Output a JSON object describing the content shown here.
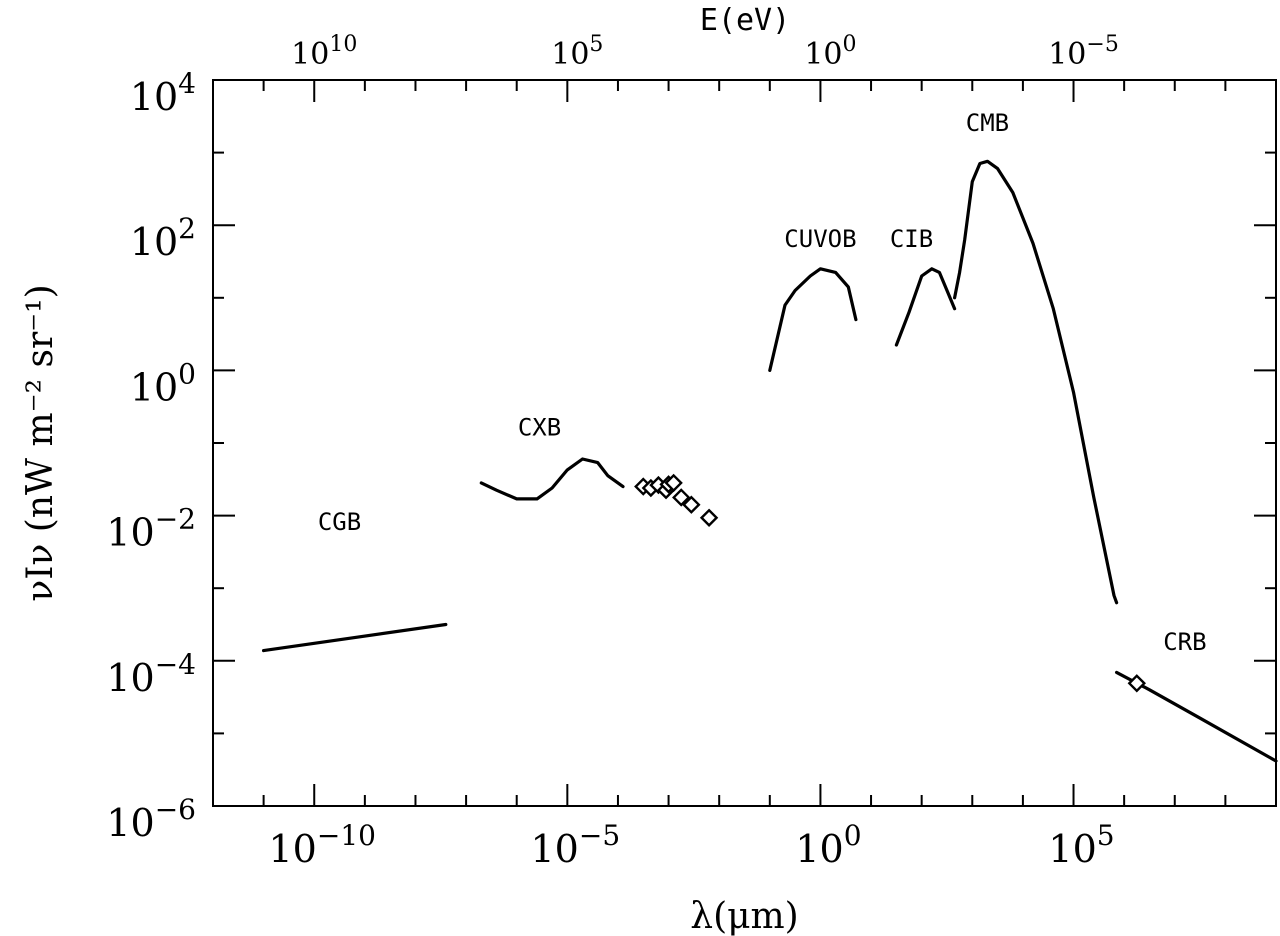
{
  "chart_data": {
    "type": "line",
    "title": "",
    "xlabel": "λ(μm)",
    "ylabel": "νIν (nW m⁻² sr⁻¹)",
    "top_xlabel": "E(eV)",
    "xscale": "log",
    "yscale": "log",
    "xlim_log10": [
      -12,
      9
    ],
    "ylim_log10": [
      -6,
      4
    ],
    "x_ticks": [
      {
        "base": "10",
        "exp": "−10",
        "log10": -10
      },
      {
        "base": "10",
        "exp": "−5",
        "log10": -5
      },
      {
        "base": "10",
        "exp": "0",
        "log10": 0
      },
      {
        "base": "10",
        "exp": "5",
        "log10": 5
      }
    ],
    "y_ticks": [
      {
        "base": "10",
        "exp": "4",
        "log10": 4
      },
      {
        "base": "10",
        "exp": "2",
        "log10": 2
      },
      {
        "base": "10",
        "exp": "0",
        "log10": 0
      },
      {
        "base": "10",
        "exp": "−2",
        "log10": -2
      },
      {
        "base": "10",
        "exp": "−4",
        "log10": -4
      },
      {
        "base": "10",
        "exp": "−6",
        "log10": -6
      }
    ],
    "top_x_ticks": [
      {
        "base": "10",
        "exp": "10",
        "log10_lambda": -10
      },
      {
        "base": "10",
        "exp": "5",
        "log10_lambda": -5
      },
      {
        "base": "10",
        "exp": "0",
        "log10_lambda": 0
      },
      {
        "base": "10",
        "exp": "−5",
        "log10_lambda": 5
      }
    ],
    "series": [
      {
        "name": "CGB",
        "points_log10": [
          [
            -11,
            -3.86
          ],
          [
            -7.4,
            -3.5
          ]
        ]
      },
      {
        "name": "CXB",
        "points_log10": [
          [
            -6.7,
            -1.55
          ],
          [
            -6.4,
            -1.65
          ],
          [
            -6.0,
            -1.77
          ],
          [
            -5.6,
            -1.77
          ],
          [
            -5.3,
            -1.62
          ],
          [
            -5.0,
            -1.37
          ],
          [
            -4.7,
            -1.22
          ],
          [
            -4.4,
            -1.27
          ],
          [
            -4.2,
            -1.45
          ],
          [
            -3.9,
            -1.6
          ]
        ]
      },
      {
        "name": "CUVOB",
        "points_log10": [
          [
            -1.0,
            0.0
          ],
          [
            -0.7,
            0.9
          ],
          [
            -0.5,
            1.1
          ],
          [
            -0.2,
            1.3
          ],
          [
            0.0,
            1.4
          ],
          [
            0.3,
            1.35
          ],
          [
            0.55,
            1.15
          ],
          [
            0.7,
            0.7
          ]
        ]
      },
      {
        "name": "CIB",
        "points_log10": [
          [
            1.5,
            0.35
          ],
          [
            1.75,
            0.8
          ],
          [
            2.0,
            1.3
          ],
          [
            2.2,
            1.4
          ],
          [
            2.35,
            1.35
          ],
          [
            2.5,
            1.1
          ],
          [
            2.65,
            0.85
          ]
        ]
      },
      {
        "name": "CMB",
        "points_log10": [
          [
            2.65,
            1.0
          ],
          [
            2.75,
            1.35
          ],
          [
            2.85,
            1.8
          ],
          [
            3.0,
            2.6
          ],
          [
            3.15,
            2.85
          ],
          [
            3.3,
            2.88
          ],
          [
            3.5,
            2.78
          ],
          [
            3.8,
            2.45
          ],
          [
            4.2,
            1.75
          ],
          [
            4.6,
            0.85
          ],
          [
            5.0,
            -0.3
          ],
          [
            5.4,
            -1.75
          ],
          [
            5.8,
            -3.1
          ],
          [
            5.85,
            -3.2
          ]
        ]
      },
      {
        "name": "CRB",
        "points_log10": [
          [
            5.85,
            -4.16
          ],
          [
            6.5,
            -4.4
          ],
          [
            7.5,
            -4.79
          ],
          [
            9.0,
            -5.38
          ]
        ]
      }
    ],
    "markers": [
      {
        "series": "CXB",
        "points_log10": [
          [
            -3.5,
            -1.6
          ],
          [
            -3.35,
            -1.62
          ],
          [
            -3.2,
            -1.58
          ],
          [
            -3.05,
            -1.65
          ],
          [
            -3.0,
            -1.57
          ],
          [
            -2.9,
            -1.55
          ],
          [
            -2.75,
            -1.75
          ],
          [
            -2.55,
            -1.85
          ],
          [
            -2.2,
            -2.03
          ]
        ]
      },
      {
        "series": "CRB",
        "points_log10": [
          [
            6.25,
            -4.31
          ]
        ]
      }
    ],
    "annotations": [
      {
        "text": "CGB",
        "at_log10": [
          -9.5,
          -2.2
        ]
      },
      {
        "text": "CXB",
        "at_log10": [
          -5.55,
          -0.9
        ]
      },
      {
        "text": "CUVOB",
        "at_log10": [
          0.0,
          1.7
        ]
      },
      {
        "text": "CIB",
        "at_log10": [
          1.8,
          1.7
        ]
      },
      {
        "text": "CMB",
        "at_log10": [
          3.3,
          3.3
        ]
      },
      {
        "text": "CRB",
        "at_log10": [
          7.2,
          -3.85
        ]
      }
    ]
  }
}
